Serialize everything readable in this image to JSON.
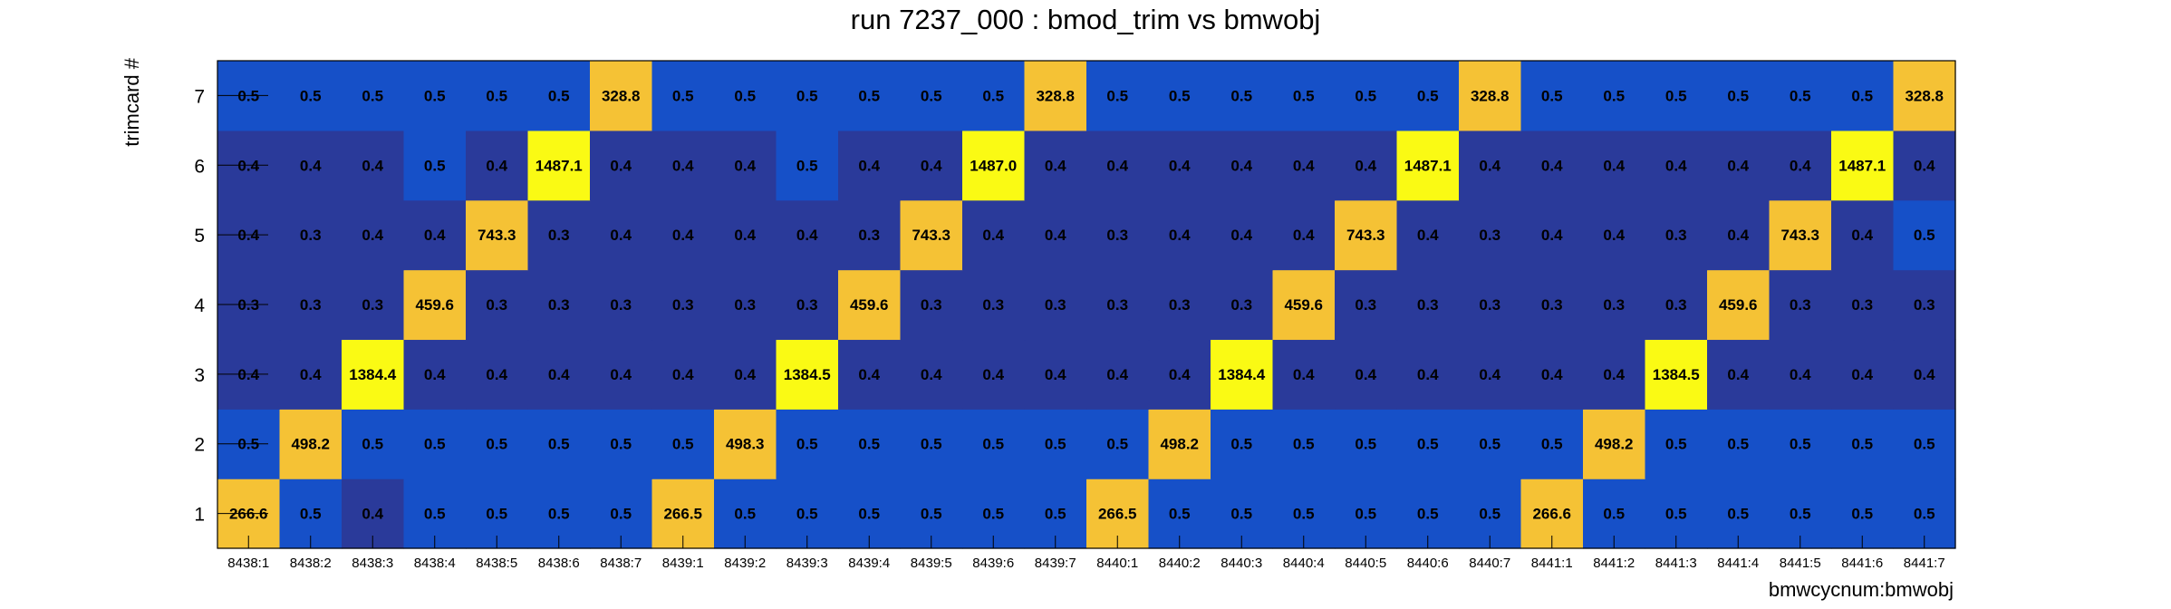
{
  "chart_data": {
    "type": "heatmap",
    "title": "run 7237_000 : bmod_trim vs bmwobj",
    "xlabel": "bmwcycnum:bmwobj",
    "ylabel": "trimcard #",
    "x": [
      "8438:1",
      "8438:2",
      "8438:3",
      "8438:4",
      "8438:5",
      "8438:6",
      "8438:7",
      "8439:1",
      "8439:2",
      "8439:3",
      "8439:4",
      "8439:5",
      "8439:6",
      "8439:7",
      "8440:1",
      "8440:2",
      "8440:3",
      "8440:4",
      "8440:5",
      "8440:6",
      "8440:7",
      "8441:1",
      "8441:2",
      "8441:3",
      "8441:4",
      "8441:5",
      "8441:6",
      "8441:7"
    ],
    "y": [
      "1",
      "2",
      "3",
      "4",
      "5",
      "6",
      "7"
    ],
    "values": [
      [
        266.6,
        0.5,
        0.4,
        0.5,
        0.5,
        0.5,
        0.5,
        266.5,
        0.5,
        0.5,
        0.5,
        0.5,
        0.5,
        0.5,
        266.5,
        0.5,
        0.5,
        0.5,
        0.5,
        0.5,
        0.5,
        266.6,
        0.5,
        0.5,
        0.5,
        0.5,
        0.5,
        0.5
      ],
      [
        0.5,
        498.2,
        0.5,
        0.5,
        0.5,
        0.5,
        0.5,
        0.5,
        498.3,
        0.5,
        0.5,
        0.5,
        0.5,
        0.5,
        0.5,
        498.2,
        0.5,
        0.5,
        0.5,
        0.5,
        0.5,
        0.5,
        498.2,
        0.5,
        0.5,
        0.5,
        0.5,
        0.5
      ],
      [
        0.4,
        0.4,
        1384.4,
        0.4,
        0.4,
        0.4,
        0.4,
        0.4,
        0.4,
        1384.5,
        0.4,
        0.4,
        0.4,
        0.4,
        0.4,
        0.4,
        1384.4,
        0.4,
        0.4,
        0.4,
        0.4,
        0.4,
        0.4,
        1384.5,
        0.4,
        0.4,
        0.4,
        0.4
      ],
      [
        0.3,
        0.3,
        0.3,
        459.6,
        0.3,
        0.3,
        0.3,
        0.3,
        0.3,
        0.3,
        459.6,
        0.3,
        0.3,
        0.3,
        0.3,
        0.3,
        0.3,
        459.6,
        0.3,
        0.3,
        0.3,
        0.3,
        0.3,
        0.3,
        459.6,
        0.3,
        0.3,
        0.3
      ],
      [
        0.4,
        0.3,
        0.4,
        0.4,
        743.3,
        0.3,
        0.4,
        0.4,
        0.4,
        0.4,
        0.3,
        743.3,
        0.4,
        0.4,
        0.3,
        0.4,
        0.4,
        0.4,
        743.3,
        0.4,
        0.3,
        0.4,
        0.4,
        0.3,
        0.4,
        743.3,
        0.4,
        0.5
      ],
      [
        0.4,
        0.4,
        0.4,
        0.5,
        0.4,
        1487.1,
        0.4,
        0.4,
        0.4,
        0.5,
        0.4,
        0.4,
        1487.0,
        0.4,
        0.4,
        0.4,
        0.4,
        0.4,
        0.4,
        1487.1,
        0.4,
        0.4,
        0.4,
        0.4,
        0.4,
        0.4,
        1487.1,
        0.4
      ],
      [
        0.5,
        0.5,
        0.5,
        0.5,
        0.5,
        0.5,
        328.8,
        0.5,
        0.5,
        0.5,
        0.5,
        0.5,
        0.5,
        328.8,
        0.5,
        0.5,
        0.5,
        0.5,
        0.5,
        0.5,
        328.8,
        0.5,
        0.5,
        0.5,
        0.5,
        0.5,
        0.5,
        328.8
      ]
    ],
    "colors": {
      "low": "#2a3a9a",
      "mid": "#1650c8",
      "medium_high": "#f5c235",
      "high": "#fafa14",
      "axis": "#000000"
    }
  }
}
